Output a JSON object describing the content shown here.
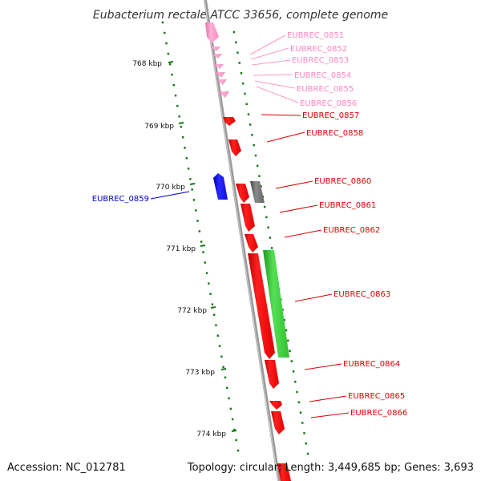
{
  "title": "Eubacterium rectale ATCC 33656, complete genome",
  "accession": "Accession: NC_012781",
  "summary": "Topology: circular; Length: 3,449,685 bp; Genes: 3,693",
  "colors": {
    "backbone": "#8a8a8a",
    "forward_cds": "#ff1a1a",
    "reverse_cds": "#1a1aff",
    "faded_cds": "#ff99c8",
    "gray_feature": "#777777",
    "green_feature": "#33cc33",
    "dotted_track": "#117711"
  },
  "ticks": [
    {
      "label": "768 kbp"
    },
    {
      "label": "769 kbp"
    },
    {
      "label": "770 kbp"
    },
    {
      "label": "771 kbp"
    },
    {
      "label": "772 kbp"
    },
    {
      "label": "773 kbp"
    },
    {
      "label": "774 kbp"
    }
  ],
  "genes": [
    {
      "label": "EUBREC_0851",
      "strand": "forward",
      "faded": true
    },
    {
      "label": "EUBREC_0852",
      "strand": "forward",
      "faded": true
    },
    {
      "label": "EUBREC_0853",
      "strand": "forward",
      "faded": true
    },
    {
      "label": "EUBREC_0854",
      "strand": "forward",
      "faded": true
    },
    {
      "label": "EUBREC_0855",
      "strand": "forward",
      "faded": true
    },
    {
      "label": "EUBREC_0856",
      "strand": "forward",
      "faded": true
    },
    {
      "label": "EUBREC_0857",
      "strand": "forward",
      "faded": false
    },
    {
      "label": "EUBREC_0858",
      "strand": "forward",
      "faded": false
    },
    {
      "label": "EUBREC_0859",
      "strand": "reverse",
      "faded": false
    },
    {
      "label": "EUBREC_0860",
      "strand": "forward",
      "faded": false
    },
    {
      "label": "EUBREC_0861",
      "strand": "forward",
      "faded": false
    },
    {
      "label": "EUBREC_0862",
      "strand": "forward",
      "faded": false
    },
    {
      "label": "EUBREC_0863",
      "strand": "forward",
      "faded": false
    },
    {
      "label": "EUBREC_0864",
      "strand": "forward",
      "faded": false
    },
    {
      "label": "EUBREC_0865",
      "strand": "forward",
      "faded": false
    },
    {
      "label": "EUBREC_0866",
      "strand": "forward",
      "faded": false
    }
  ]
}
